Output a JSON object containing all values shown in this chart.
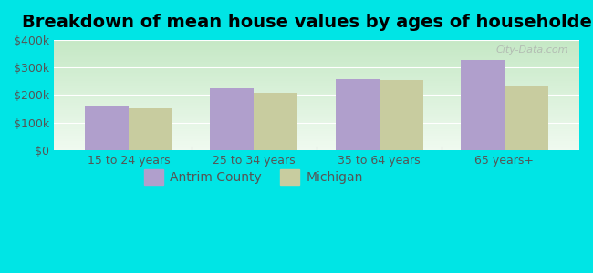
{
  "title": "Breakdown of mean house values by ages of householders",
  "categories": [
    "15 to 24 years",
    "25 to 34 years",
    "35 to 64 years",
    "65 years+"
  ],
  "antrim_values": [
    163000,
    225000,
    258000,
    328000
  ],
  "michigan_values": [
    153000,
    207000,
    255000,
    232000
  ],
  "antrim_color": "#b09fcc",
  "michigan_color": "#c8cc9f",
  "ylim": [
    0,
    400000
  ],
  "yticks": [
    0,
    100000,
    200000,
    300000,
    400000
  ],
  "ytick_labels": [
    "$0",
    "$100k",
    "$200k",
    "$300k",
    "$400k"
  ],
  "background_color": "#00e5e5",
  "plot_bg_top": "#c5e8c5",
  "plot_bg_bottom": "#f0faf0",
  "watermark": "City-Data.com",
  "legend_labels": [
    "Antrim County",
    "Michigan"
  ],
  "bar_width": 0.35,
  "title_fontsize": 14,
  "tick_fontsize": 9,
  "legend_fontsize": 10
}
